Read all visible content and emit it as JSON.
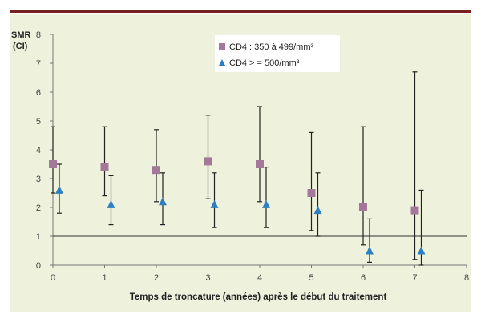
{
  "chart_data": {
    "type": "scatter",
    "ylabel_line1": "SMR",
    "ylabel_line2": "(CI)",
    "xlabel": "Temps de troncature (années) après le début du traitement",
    "xlim": [
      0,
      8
    ],
    "ylim": [
      0,
      8
    ],
    "x_ticks": [
      "0",
      "1",
      "2",
      "3",
      "4",
      "5",
      "6",
      "7",
      "8"
    ],
    "y_ticks": [
      "0",
      "1",
      "2",
      "3",
      "4",
      "5",
      "6",
      "7",
      "8"
    ],
    "reference_line": 1,
    "series": [
      {
        "name": "CD4 : 350 à 499/mm³",
        "marker": "square",
        "color": "#a3789a",
        "points": [
          {
            "x": 0,
            "y": 3.5,
            "lo": 2.5,
            "hi": 4.8
          },
          {
            "x": 1,
            "y": 3.4,
            "lo": 2.4,
            "hi": 4.8
          },
          {
            "x": 2,
            "y": 3.3,
            "lo": 2.2,
            "hi": 4.7
          },
          {
            "x": 3,
            "y": 3.6,
            "lo": 2.3,
            "hi": 5.2
          },
          {
            "x": 4,
            "y": 3.5,
            "lo": 2.2,
            "hi": 5.5
          },
          {
            "x": 5,
            "y": 2.5,
            "lo": 1.2,
            "hi": 4.6
          },
          {
            "x": 6,
            "y": 2.0,
            "lo": 0.7,
            "hi": 4.8
          },
          {
            "x": 7,
            "y": 1.9,
            "lo": 0.2,
            "hi": 6.7
          }
        ]
      },
      {
        "name": "CD4 > = 500/mm³",
        "marker": "triangle",
        "color": "#2d7fc1",
        "points": [
          {
            "x": 0,
            "y": 2.6,
            "lo": 1.8,
            "hi": 3.5
          },
          {
            "x": 1,
            "y": 2.1,
            "lo": 1.4,
            "hi": 3.1
          },
          {
            "x": 2,
            "y": 2.2,
            "lo": 1.4,
            "hi": 3.2
          },
          {
            "x": 3,
            "y": 2.1,
            "lo": 1.3,
            "hi": 3.2
          },
          {
            "x": 4,
            "y": 2.1,
            "lo": 1.3,
            "hi": 3.4
          },
          {
            "x": 5,
            "y": 1.9,
            "lo": 1.0,
            "hi": 3.2
          },
          {
            "x": 6,
            "y": 0.5,
            "lo": 0.1,
            "hi": 1.6
          },
          {
            "x": 7,
            "y": 0.5,
            "lo": 0.0,
            "hi": 2.6
          }
        ]
      }
    ],
    "legend": [
      "CD4 : 350 à 499/mm³",
      "CD4 > = 500/mm³"
    ],
    "colors": {
      "panel": "#eef1dc",
      "rule": "#7a1f1f",
      "line": "#333333"
    }
  }
}
